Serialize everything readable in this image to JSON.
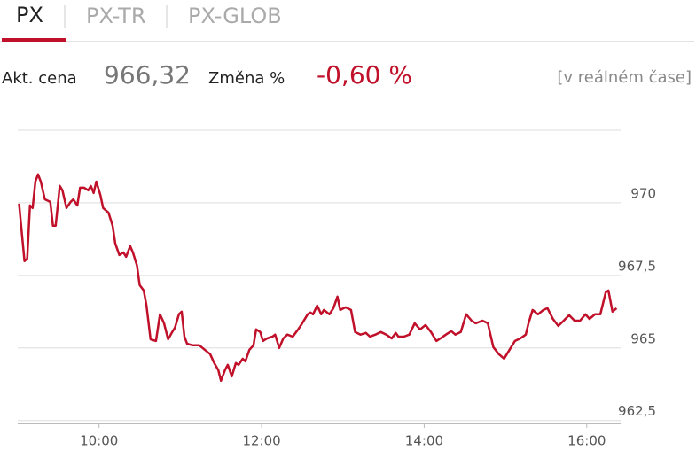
{
  "tabs": [
    "PX",
    "PX-TR",
    "PX-GLOB"
  ],
  "quote": {
    "price_label": "Akt. cena",
    "price": "966,32",
    "change_label": "Změna %",
    "change": "-0,60 %",
    "status": "[v reálném čase]"
  },
  "chart_data": {
    "type": "line",
    "color": "#c0102a",
    "x": [
      541,
      545,
      547,
      549,
      551,
      553,
      555,
      557,
      560,
      564,
      566,
      568,
      571,
      573,
      576,
      579,
      581,
      584,
      586,
      589,
      592,
      594,
      596,
      598,
      601,
      603,
      607,
      610,
      612,
      615,
      618,
      620,
      623,
      625,
      628,
      630,
      633,
      635,
      638,
      642,
      645,
      648,
      651,
      654,
      656,
      659,
      661,
      663,
      665,
      669,
      674,
      678,
      682,
      685,
      688,
      690,
      693,
      695,
      698,
      701,
      703,
      706,
      708,
      711,
      714,
      716,
      719,
      721,
      724,
      728,
      730,
      733,
      736,
      739,
      743,
      747,
      750,
      754,
      756,
      758,
      761,
      764,
      766,
      770,
      773,
      776,
      778,
      782,
      786,
      789,
      793,
      797,
      800,
      804,
      808,
      812,
      816,
      819,
      821,
      825,
      829,
      833,
      837,
      841,
      845,
      849,
      852,
      856,
      860,
      863,
      867,
      871,
      875,
      878,
      883,
      887,
      891,
      895,
      899,
      903,
      907,
      911,
      915,
      917,
      920,
      924,
      928,
      931,
      935,
      939,
      943,
      947,
      951,
      955,
      959,
      962,
      966,
      970,
      974,
      976,
      979,
      982
    ],
    "values": [
      969.97,
      967.99,
      968.08,
      969.91,
      969.82,
      970.73,
      970.98,
      970.73,
      970.12,
      970.03,
      969.21,
      969.21,
      970.58,
      970.43,
      969.82,
      970.03,
      970.12,
      969.91,
      970.52,
      970.52,
      970.43,
      970.58,
      970.34,
      970.73,
      970.27,
      969.82,
      969.66,
      969.21,
      968.6,
      968.2,
      968.29,
      968.14,
      968.51,
      968.29,
      967.84,
      967.17,
      966.98,
      966.46,
      965.3,
      965.24,
      966.16,
      965.85,
      965.3,
      965.55,
      965.7,
      966.16,
      966.25,
      965.39,
      965.15,
      965.09,
      965.09,
      964.94,
      964.79,
      964.48,
      964.24,
      963.87,
      964.24,
      964.42,
      964.02,
      964.48,
      964.42,
      964.63,
      964.54,
      964.94,
      965.09,
      965.64,
      965.55,
      965.24,
      965.33,
      965.39,
      965.46,
      965.0,
      965.33,
      965.46,
      965.39,
      965.64,
      965.85,
      966.16,
      966.22,
      966.16,
      966.46,
      966.16,
      966.31,
      966.16,
      966.37,
      966.77,
      966.31,
      966.4,
      966.31,
      965.55,
      965.46,
      965.52,
      965.39,
      965.46,
      965.55,
      965.46,
      965.33,
      965.52,
      965.39,
      965.39,
      965.46,
      965.85,
      965.64,
      965.79,
      965.55,
      965.24,
      965.33,
      965.46,
      965.58,
      965.46,
      965.55,
      966.16,
      965.94,
      965.85,
      965.94,
      965.85,
      965.03,
      964.79,
      964.63,
      964.94,
      965.24,
      965.33,
      965.46,
      965.85,
      966.31,
      966.16,
      966.31,
      966.37,
      966.0,
      965.76,
      965.94,
      966.13,
      965.94,
      965.94,
      966.16,
      966.0,
      966.16,
      966.16,
      966.92,
      966.98,
      966.25,
      966.37
    ],
    "xlim": [
      540,
      985
    ],
    "xticks": [
      {
        "value": 600,
        "label": "10:00"
      },
      {
        "value": 720,
        "label": "12:00"
      },
      {
        "value": 840,
        "label": "14:00"
      },
      {
        "value": 960,
        "label": "16:00"
      }
    ],
    "ylim": [
      962.4,
      972.5
    ],
    "yticks": [
      {
        "value": 962.5,
        "label": "962,5"
      },
      965,
      {
        "value": 967.5,
        "label": "967,5"
      },
      970
    ],
    "grid": true
  }
}
